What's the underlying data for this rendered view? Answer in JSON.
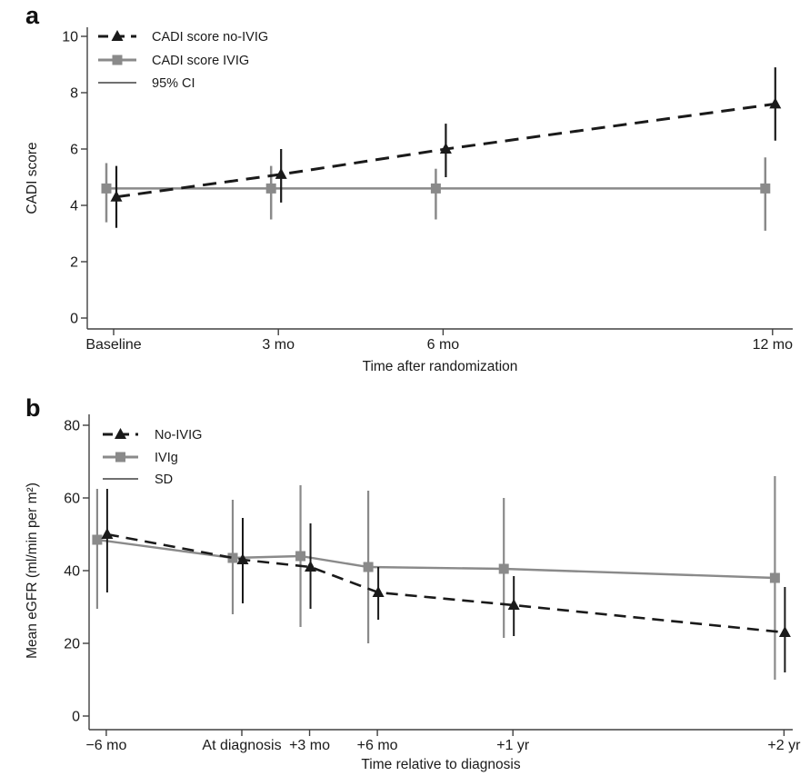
{
  "figure": {
    "background": "#ffffff",
    "panel_letters": [
      "a",
      "b"
    ]
  },
  "colors": {
    "no_ivig_series": "#1a1a1a",
    "ivig_series": "#8a8a8a",
    "axis": "#404040",
    "text": "#1a1a1a"
  },
  "chart_data": [
    {
      "id": "a",
      "panel_label": "a",
      "type": "line",
      "title": "",
      "xlabel": "Time after randomization",
      "ylabel": "CADI score",
      "ylim": [
        0,
        10
      ],
      "yticks": [
        0,
        2,
        4,
        6,
        8,
        10
      ],
      "x_unit": "months",
      "xticks": [
        {
          "t": 0,
          "label": "Baseline"
        },
        {
          "t": 3,
          "label": "3 mo"
        },
        {
          "t": 6,
          "label": "6 mo"
        },
        {
          "t": 12,
          "label": "12 mo"
        }
      ],
      "error_bar_label": "95% CI",
      "legend_position": "top-left",
      "grid": false,
      "series": [
        {
          "name": "CADI score no-IVIG",
          "marker": "triangle",
          "line": "dashed",
          "color": "#1a1a1a",
          "points": [
            {
              "t": 0,
              "v": 4.3,
              "lo": 3.2,
              "hi": 5.4
            },
            {
              "t": 3,
              "v": 5.1,
              "lo": 4.1,
              "hi": 6.0
            },
            {
              "t": 6,
              "v": 6.0,
              "lo": 5.0,
              "hi": 6.9
            },
            {
              "t": 12,
              "v": 7.6,
              "lo": 6.3,
              "hi": 8.9
            }
          ]
        },
        {
          "name": "CADI score IVIG",
          "marker": "square",
          "line": "solid",
          "color": "#8a8a8a",
          "points": [
            {
              "t": 0,
              "v": 4.6,
              "lo": 3.4,
              "hi": 5.5
            },
            {
              "t": 3,
              "v": 4.6,
              "lo": 3.5,
              "hi": 5.4
            },
            {
              "t": 6,
              "v": 4.6,
              "lo": 3.5,
              "hi": 5.3
            },
            {
              "t": 12,
              "v": 4.6,
              "lo": 3.1,
              "hi": 5.7
            }
          ]
        }
      ]
    },
    {
      "id": "b",
      "panel_label": "b",
      "type": "line",
      "title": "",
      "xlabel": "Time relative to diagnosis",
      "ylabel": "Mean eGFR (ml/min per m²)",
      "ylim": [
        0,
        80
      ],
      "yticks": [
        0,
        20,
        40,
        60,
        80
      ],
      "x_unit": "months",
      "xticks": [
        {
          "t": -6,
          "label": "−6 mo"
        },
        {
          "t": 0,
          "label": "At diagnosis"
        },
        {
          "t": 3,
          "label": "+3 mo"
        },
        {
          "t": 6,
          "label": "+6 mo"
        },
        {
          "t": 12,
          "label": "+1 yr"
        },
        {
          "t": 24,
          "label": "+2 yr"
        }
      ],
      "error_bar_label": "SD",
      "legend_position": "top-left",
      "grid": false,
      "series": [
        {
          "name": "No-IVIG",
          "marker": "triangle",
          "line": "dashed",
          "color": "#1a1a1a",
          "points": [
            {
              "t": -6,
              "v": 50.0,
              "lo": 34.0,
              "hi": 62.5
            },
            {
              "t": 0,
              "v": 43.0,
              "lo": 31.0,
              "hi": 54.5
            },
            {
              "t": 3,
              "v": 41.0,
              "lo": 29.5,
              "hi": 53.0
            },
            {
              "t": 6,
              "v": 34.0,
              "lo": 26.5,
              "hi": 41.0
            },
            {
              "t": 12,
              "v": 30.5,
              "lo": 22.0,
              "hi": 38.5
            },
            {
              "t": 24,
              "v": 23.0,
              "lo": 12.0,
              "hi": 35.5
            }
          ]
        },
        {
          "name": "IVIg",
          "marker": "square",
          "line": "solid",
          "color": "#8a8a8a",
          "points": [
            {
              "t": -6,
              "v": 48.5,
              "lo": 29.5,
              "hi": 62.5
            },
            {
              "t": 0,
              "v": 43.5,
              "lo": 28.0,
              "hi": 59.5
            },
            {
              "t": 3,
              "v": 44.0,
              "lo": 24.5,
              "hi": 63.5
            },
            {
              "t": 6,
              "v": 41.0,
              "lo": 20.0,
              "hi": 62.0
            },
            {
              "t": 12,
              "v": 40.5,
              "lo": 21.5,
              "hi": 60.0
            },
            {
              "t": 24,
              "v": 38.0,
              "lo": 10.0,
              "hi": 66.0
            }
          ]
        }
      ]
    }
  ]
}
